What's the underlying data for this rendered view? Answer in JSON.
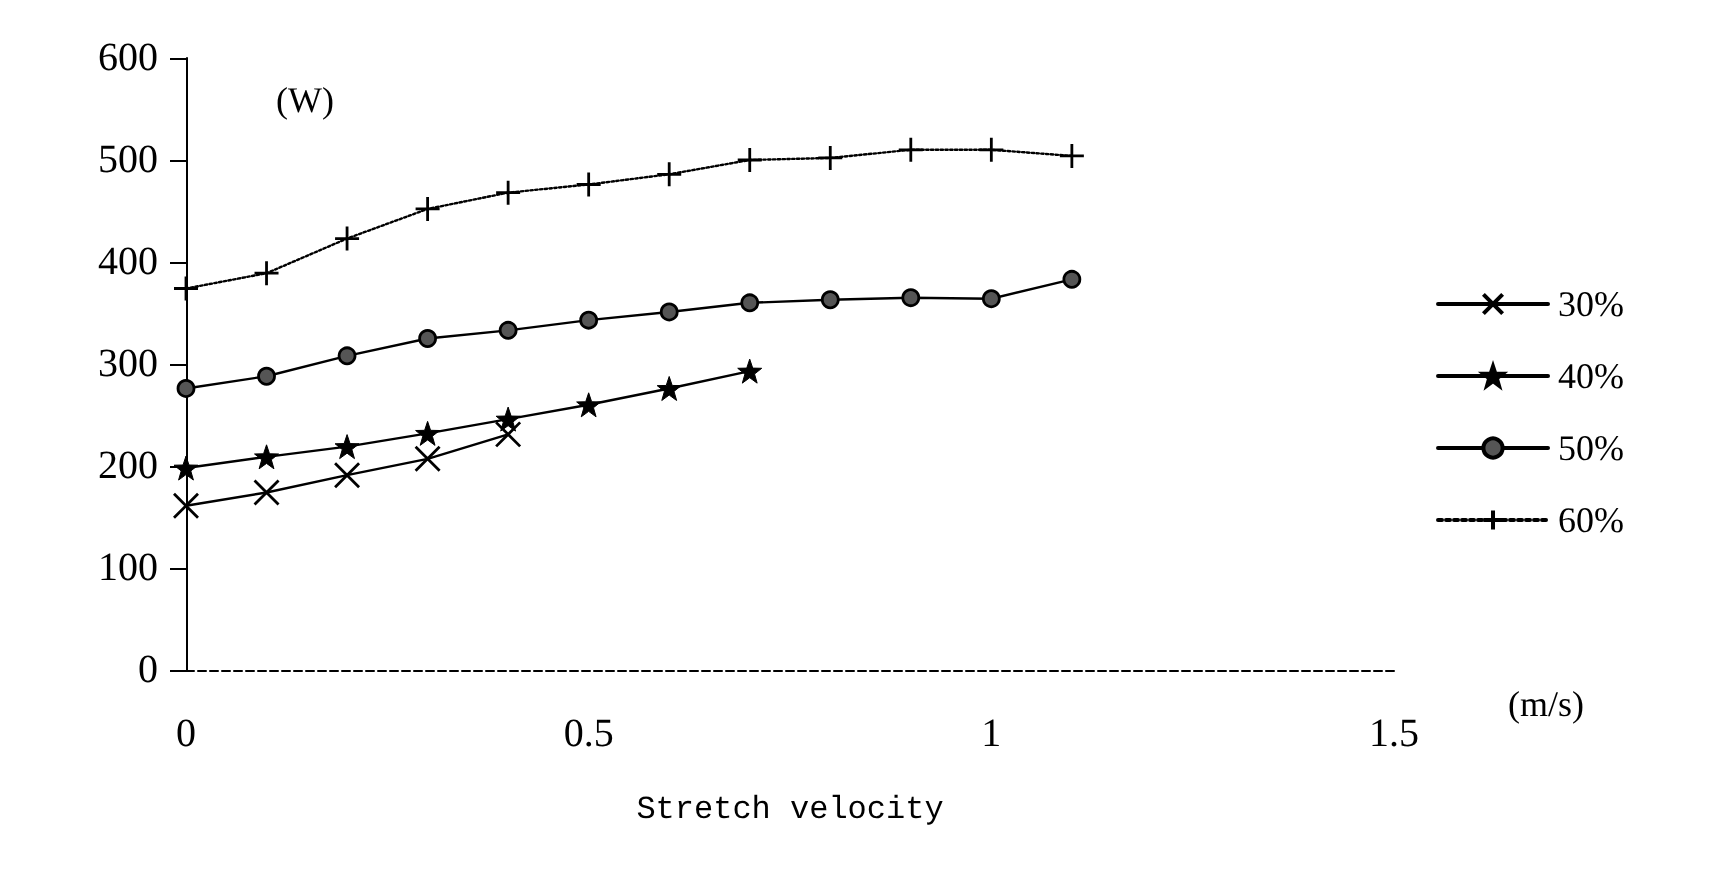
{
  "chart_data": {
    "type": "line",
    "xlabel": "Stretch velocity",
    "ylabel": "(W)",
    "annotations": [
      "(m/s)"
    ],
    "xlim": [
      0,
      1.5
    ],
    "xticks": [
      0,
      0.5,
      1,
      1.5
    ],
    "ylim": [
      0,
      600
    ],
    "yticks": [
      0,
      100,
      200,
      300,
      400,
      500,
      600
    ],
    "legend": "right",
    "grid": false,
    "series": [
      {
        "name": "30%",
        "color": "#000000",
        "marker": "cross",
        "line_style": "solid",
        "x": [
          0,
          0.1,
          0.2,
          0.3,
          0.4
        ],
        "values": [
          161,
          174,
          191,
          207,
          231
        ]
      },
      {
        "name": "40%",
        "color": "#000000",
        "marker": "star",
        "line_style": "solid",
        "x": [
          0,
          0.1,
          0.2,
          0.3,
          0.4,
          0.5,
          0.6,
          0.7
        ],
        "values": [
          198,
          209,
          219,
          232,
          246,
          260,
          276,
          293
        ]
      },
      {
        "name": "50%",
        "color": "#000000",
        "marker": "circle",
        "line_style": "solid",
        "x": [
          0,
          0.1,
          0.2,
          0.3,
          0.4,
          0.5,
          0.6,
          0.7,
          0.8,
          0.9,
          1.0,
          1.1
        ],
        "values": [
          276,
          288,
          308,
          325,
          333,
          343,
          351,
          360,
          363,
          365,
          364,
          383
        ]
      },
      {
        "name": "60%",
        "color": "#000000",
        "marker": "plus",
        "line_style": "dotted",
        "x": [
          0,
          0.1,
          0.2,
          0.3,
          0.4,
          0.5,
          0.6,
          0.7,
          0.8,
          0.9,
          1.0,
          1.1
        ],
        "values": [
          374,
          389,
          423,
          452,
          468,
          476,
          486,
          500,
          502,
          510,
          510,
          504
        ]
      }
    ]
  }
}
